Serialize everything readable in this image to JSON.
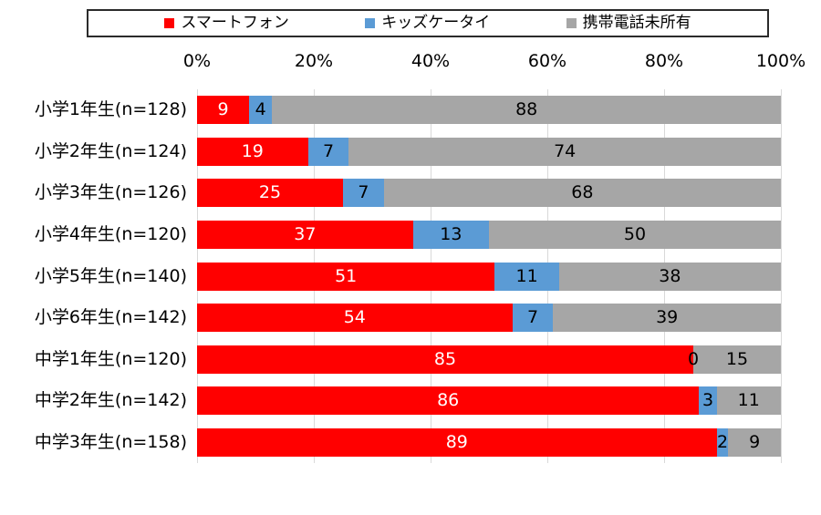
{
  "chart_data": {
    "type": "bar",
    "orientation": "horizontal",
    "stacked_percent": true,
    "title": "",
    "legend_position": "top",
    "categories": [
      "小学1年生(n=128)",
      "小学2年生(n=124)",
      "小学3年生(n=126)",
      "小学4年生(n=120)",
      "小学5年生(n=140)",
      "小学6年生(n=142)",
      "中学1年生(n=120)",
      "中学2年生(n=142)",
      "中学3年生(n=158)"
    ],
    "series": [
      {
        "name": "スマートフォン",
        "key": "smartphone",
        "color": "#ff0000",
        "label_color": "#ffffff",
        "values": [
          9,
          19,
          25,
          37,
          51,
          54,
          85,
          86,
          89
        ]
      },
      {
        "name": "キッズケータイ",
        "key": "kids-keitai",
        "color": "#5b9bd5",
        "label_color": "#000000",
        "values": [
          4,
          7,
          7,
          13,
          11,
          7,
          0,
          3,
          2
        ]
      },
      {
        "name": "携帯電話未所有",
        "key": "mobile-not-owned",
        "color": "#a6a6a6",
        "label_color": "#000000",
        "values": [
          88,
          74,
          68,
          50,
          38,
          39,
          15,
          11,
          9
        ]
      }
    ],
    "x_axis": {
      "position": "top",
      "ticks": [
        "0%",
        "20%",
        "40%",
        "60%",
        "80%",
        "100%"
      ],
      "min": 0,
      "max": 100
    },
    "gridlines": {
      "show": true,
      "color": "#d9d9d9"
    },
    "colors": {
      "legend_border": "#2b2b2b",
      "background": "#ffffff",
      "text": "#000000"
    }
  }
}
